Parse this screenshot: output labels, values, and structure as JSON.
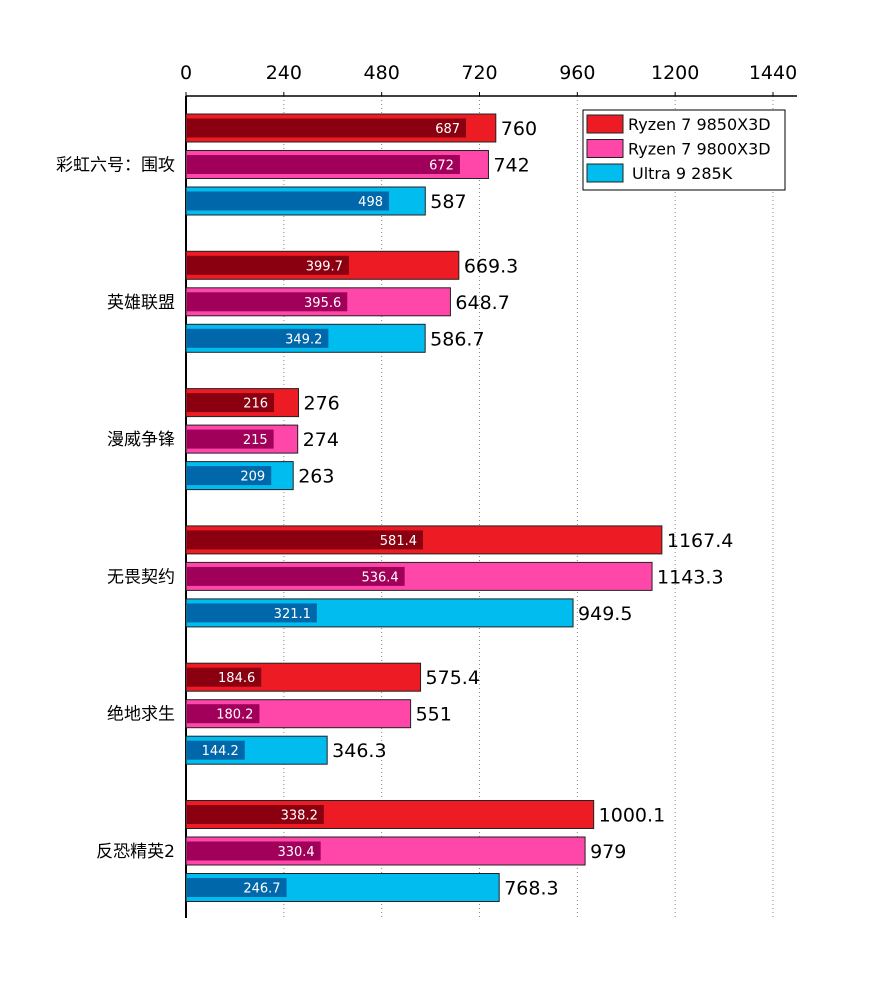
{
  "chart_data": {
    "type": "bar",
    "orientation": "horizontal",
    "title": "",
    "xlabel": "",
    "ylabel": "",
    "xlim": [
      0,
      1440
    ],
    "xticks": [
      0,
      240,
      480,
      720,
      960,
      1200,
      1440
    ],
    "x_axis_position": "top",
    "grid": "vertical dotted",
    "legend_position": "top-right",
    "categories": [
      "彩虹六号：围攻",
      "英雄联盟",
      "漫威争锋",
      "无畏契约",
      "绝地求生",
      "反恐精英2"
    ],
    "series": [
      {
        "name": "Ryzen 7 9850X3D",
        "color": "#ED1C24",
        "inner_color": "#8B0010",
        "values": [
          760,
          669.3,
          276,
          1167.4,
          575.4,
          1000.1
        ],
        "inner_values": [
          687,
          399.7,
          216,
          581.4,
          184.6,
          338.2
        ]
      },
      {
        "name": "Ryzen 7 9800X3D",
        "color": "#FF47AA",
        "inner_color": "#A0005A",
        "values": [
          742,
          648.7,
          274,
          1143.3,
          551,
          979
        ],
        "inner_values": [
          672,
          395.6,
          215,
          536.4,
          180.2,
          330.4
        ]
      },
      {
        "name": "Ultra 9 285K",
        "color": "#00BCEF",
        "inner_color": "#0068AA",
        "values": [
          587,
          586.7,
          263,
          949.5,
          346.3,
          768.3
        ],
        "inner_values": [
          498,
          349.2,
          209,
          321.1,
          144.2,
          246.7
        ]
      }
    ]
  }
}
